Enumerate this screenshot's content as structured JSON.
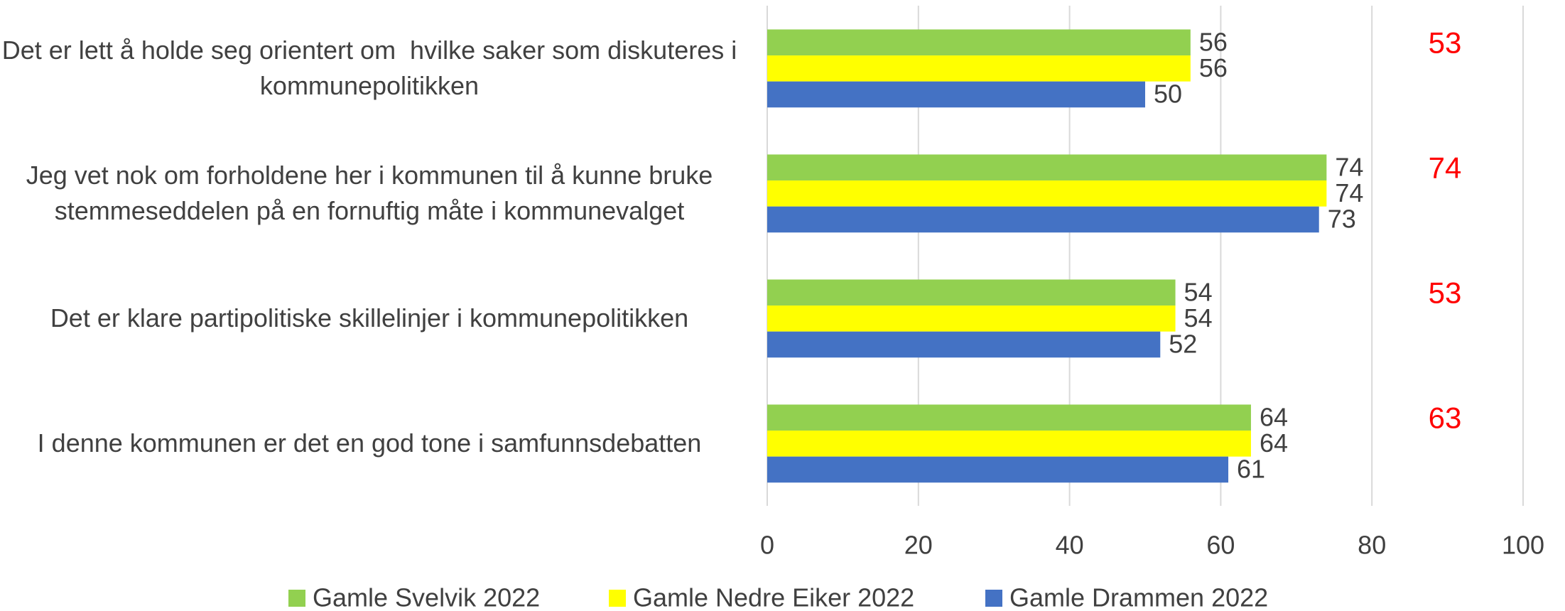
{
  "chart_data": {
    "type": "bar",
    "orientation": "horizontal",
    "categories": [
      "Det er lett å holde seg orientert om  hvilke saker som diskuteres i kommunepolitikken",
      "Jeg vet nok om forholdene her i kommunen til å kunne bruke stemmeseddelen på en fornuftig måte i kommunevalget",
      "Det er klare partipolitiske skillelinjer i kommunepolitikken",
      "I denne kommunen er det en god tone i samfunnsdebatten"
    ],
    "series": [
      {
        "name": "Gamle Svelvik 2022",
        "color": "#92d050",
        "values": [
          56,
          74,
          54,
          64
        ]
      },
      {
        "name": "Gamle Nedre Eiker 2022",
        "color": "#ffff00",
        "values": [
          56,
          74,
          54,
          64
        ]
      },
      {
        "name": "Gamle Drammen 2022",
        "color": "#4472c4",
        "values": [
          50,
          73,
          52,
          61
        ]
      }
    ],
    "annotations": {
      "color": "#ff0000",
      "values": [
        53,
        74,
        53,
        63
      ]
    },
    "xlim": [
      0,
      100
    ],
    "xticks": [
      0,
      20,
      40,
      60,
      80,
      100
    ],
    "grid": true,
    "legend": "bottom"
  }
}
